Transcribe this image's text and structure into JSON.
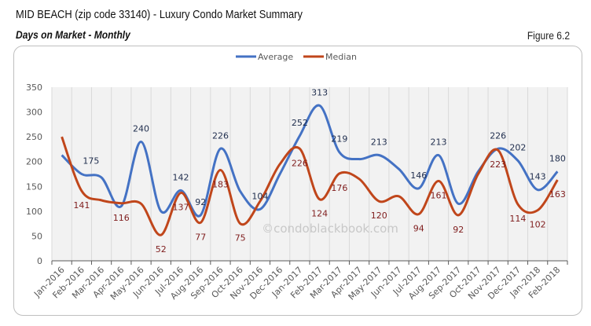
{
  "header": {
    "title": "MID BEACH (zip code 33140) - Luxury Condo Market Summary",
    "subtitle": "Days on Market - Monthly",
    "figure": "Figure 6.2"
  },
  "watermark": "©condoblackbook.com",
  "chart_data": {
    "type": "line",
    "title": "Days on Market - Monthly",
    "xlabel": "",
    "ylabel": "",
    "ylim": [
      0,
      350
    ],
    "yticks": [
      0,
      50,
      100,
      150,
      200,
      250,
      300,
      350
    ],
    "grid": "vertical",
    "legend": "top-center",
    "categories": [
      "Jan-2016",
      "Feb-2016",
      "Mar-2016",
      "Apr-2016",
      "May-2016",
      "Jun-2016",
      "Jul-2016",
      "Aug-2016",
      "Sep-2016",
      "Oct-2016",
      "Nov-2016",
      "Dec-2016",
      "Jan-2017",
      "Feb-2017",
      "Mar-2017",
      "Apr-2017",
      "May-2017",
      "Jun-2017",
      "Jul-2017",
      "Aug-2017",
      "Sep-2017",
      "Oct-2017",
      "Nov-2017",
      "Dec-2017",
      "Jan-2018",
      "Feb-2018"
    ],
    "series": [
      {
        "name": "Average",
        "color": "#4472c4",
        "values": [
          213,
          175,
          168,
          110,
          240,
          100,
          142,
          92,
          226,
          140,
          104,
          175,
          252,
          313,
          219,
          205,
          213,
          185,
          146,
          213,
          115,
          180,
          226,
          202,
          143,
          180
        ],
        "data_labels": [
          null,
          175,
          null,
          null,
          240,
          null,
          142,
          92,
          226,
          null,
          104,
          null,
          252,
          313,
          219,
          null,
          213,
          null,
          146,
          213,
          null,
          null,
          226,
          202,
          143,
          180
        ]
      },
      {
        "name": "Median",
        "color": "#c0461b",
        "label_color": "#7f1d1d",
        "values": [
          250,
          141,
          122,
          116,
          115,
          52,
          137,
          77,
          183,
          75,
          120,
          195,
          226,
          124,
          176,
          165,
          120,
          130,
          94,
          161,
          92,
          175,
          223,
          114,
          102,
          163
        ],
        "data_labels": [
          null,
          141,
          null,
          116,
          null,
          52,
          137,
          77,
          183,
          75,
          null,
          null,
          226,
          124,
          176,
          null,
          120,
          null,
          94,
          161,
          92,
          null,
          223,
          114,
          102,
          163
        ]
      }
    ]
  }
}
